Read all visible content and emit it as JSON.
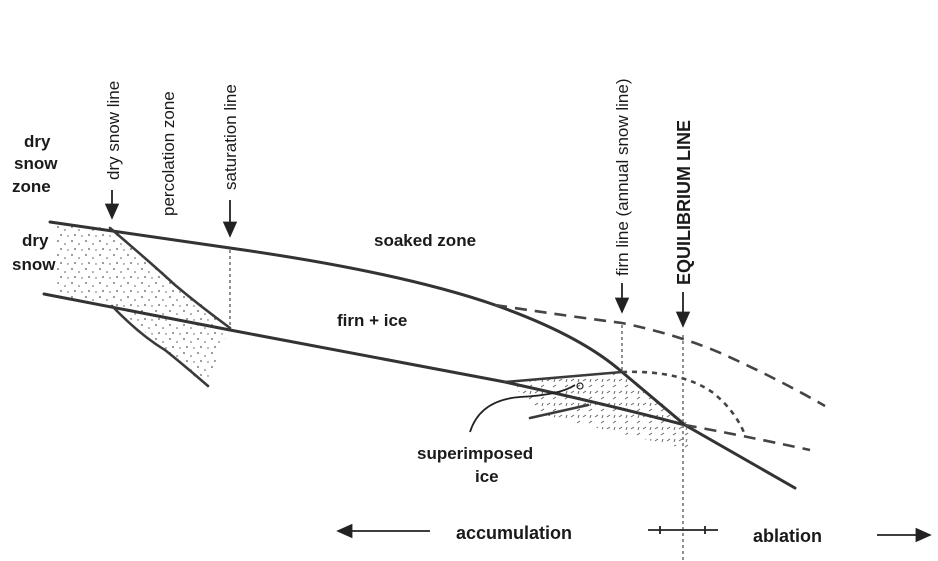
{
  "labels": {
    "dry_snow_zone": [
      "dry",
      "snow",
      "zone"
    ],
    "dry_snow": [
      "dry",
      "snow"
    ],
    "dry_snow_line": "dry snow line",
    "percolation_zone": "percolation zone",
    "saturation_line": "saturation line",
    "soaked_zone": "soaked zone",
    "firn_ice": "firn + ice",
    "firn_line": "firn line  (annual snow line)",
    "equilibrium_line": "EQUILIBRIUM LINE",
    "superimposed_ice": [
      "superimposed",
      "ice"
    ],
    "accumulation": "accumulation",
    "ablation": "ablation"
  }
}
